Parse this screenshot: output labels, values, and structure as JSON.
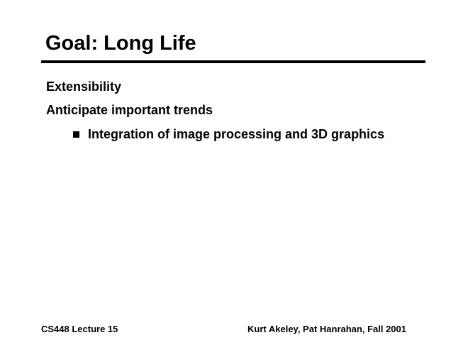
{
  "slide": {
    "title": "Goal: Long Life",
    "body": {
      "lines": [
        "Extensibility",
        "Anticipate important trends"
      ],
      "bullets": [
        "Integration of image processing and 3D graphics"
      ]
    },
    "footer": {
      "left": "CS448 Lecture 15",
      "right": "Kurt Akeley, Pat Hanrahan, Fall 2001"
    },
    "colors": {
      "background": "#ffffff",
      "text": "#000000",
      "rule": "#000000",
      "bullet": "#000000"
    }
  }
}
